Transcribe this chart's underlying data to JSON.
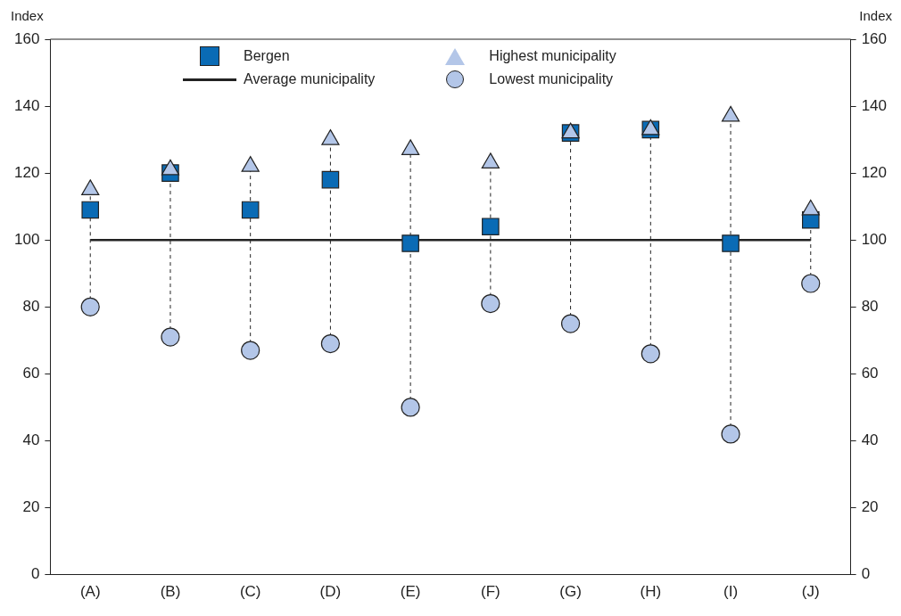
{
  "chart_data": {
    "type": "scatter",
    "ylabel": "Index",
    "y2label": "Index",
    "categories": [
      "(A)",
      "(B)",
      "(C)",
      "(D)",
      "(E)",
      "(F)",
      "(G)",
      "(H)",
      "(I)",
      "(J)"
    ],
    "series": [
      {
        "name": "Bergen",
        "marker": "square",
        "color": "#0a6bb5",
        "values": [
          109,
          120,
          109,
          118,
          99,
          104,
          132,
          133,
          99,
          106
        ]
      },
      {
        "name": "Average municipality",
        "type": "line",
        "marker": "none",
        "color": "#222222",
        "values": [
          100,
          100,
          100,
          100,
          null,
          100,
          100,
          100,
          null,
          100
        ]
      },
      {
        "name": "Highest municipality",
        "marker": "triangle",
        "color": "#b3c6e8",
        "values": [
          115,
          121,
          122,
          130,
          127,
          123,
          132,
          133,
          137,
          109
        ]
      },
      {
        "name": "Lowest municipality",
        "marker": "circle",
        "color": "#b3c6e8",
        "values": [
          80,
          71,
          67,
          69,
          50,
          81,
          75,
          66,
          42,
          87
        ]
      }
    ],
    "ylim": [
      0,
      160
    ],
    "yticks": [
      0,
      20,
      40,
      60,
      80,
      100,
      120,
      140,
      160
    ],
    "y2lim": [
      0,
      160
    ],
    "y2ticks": [
      0,
      20,
      40,
      60,
      80,
      100,
      120,
      140,
      160
    ],
    "grid": false,
    "legend": "top"
  }
}
